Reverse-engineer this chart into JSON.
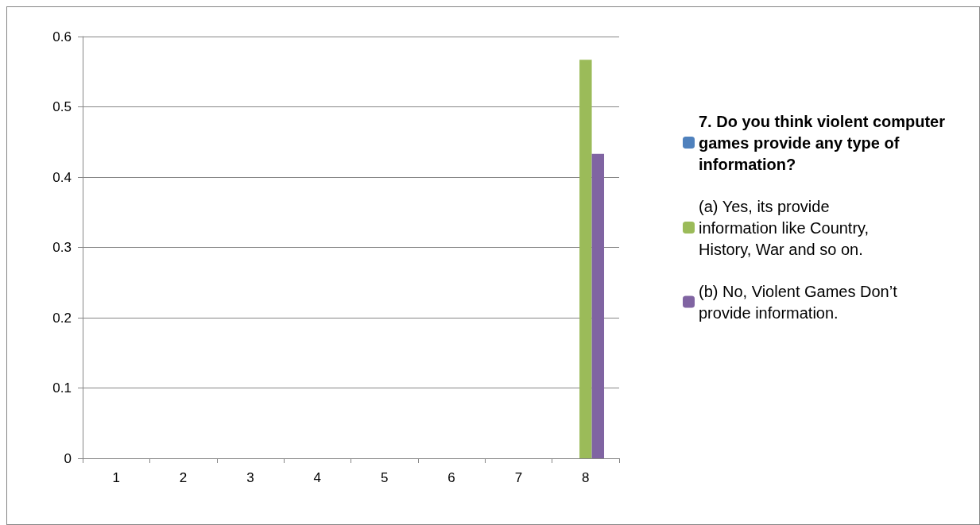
{
  "chart_data": {
    "type": "bar",
    "categories": [
      "1",
      "2",
      "3",
      "4",
      "5",
      "6",
      "7",
      "8"
    ],
    "series": [
      {
        "name": "7. Do you think violent computer games provide any type of information?",
        "color": "#4f81bd",
        "values": [
          null,
          null,
          null,
          null,
          null,
          null,
          null,
          null
        ]
      },
      {
        "name": "(a) Yes, its provide information like Country, History, War and so on.",
        "color": "#9bbb59",
        "values": [
          null,
          null,
          null,
          null,
          null,
          null,
          null,
          0.567
        ]
      },
      {
        "name": "(b) No, Violent Games Don’t provide information.",
        "color": "#8064a2",
        "values": [
          null,
          null,
          null,
          null,
          null,
          null,
          null,
          0.433
        ]
      }
    ],
    "ylim": [
      0,
      0.6
    ],
    "yticks": [
      0,
      0.1,
      0.2,
      0.3,
      0.4,
      0.5,
      0.6
    ],
    "grid": "y",
    "legend": "right"
  }
}
